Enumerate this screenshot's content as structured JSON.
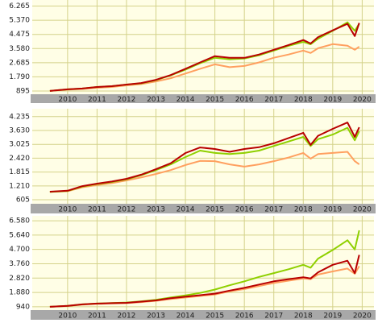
{
  "chart_data": [
    {
      "type": "line",
      "grid": true,
      "xlim": [
        2008.8,
        2020.4
      ],
      "xticks": [
        2010,
        2011,
        2012,
        2013,
        2014,
        2015,
        2016,
        2017,
        2018,
        2019,
        2020
      ],
      "ylim": [
        690,
        6650
      ],
      "yticks": [
        895,
        {
          "value": 1790,
          "label": "1.790"
        },
        {
          "value": 2685,
          "label": "2.685"
        },
        {
          "value": 3580,
          "label": "3.580"
        },
        {
          "value": 4475,
          "label": "4.475"
        },
        {
          "value": 5370,
          "label": "5.370"
        },
        {
          "value": 6265,
          "label": "6.265"
        }
      ],
      "x": [
        2009.4,
        2010,
        2010.5,
        2011,
        2011.5,
        2012,
        2012.5,
        2013,
        2013.5,
        2014,
        2014.5,
        2015,
        2015.5,
        2016,
        2016.5,
        2017,
        2017.5,
        2018,
        2018.25,
        2018.5,
        2019,
        2019.5,
        2019.75,
        2019.9
      ],
      "series": [
        {
          "color": "#ffa060",
          "values": [
            900,
            980,
            1020,
            1100,
            1150,
            1250,
            1330,
            1500,
            1700,
            2000,
            2300,
            2580,
            2400,
            2480,
            2700,
            3000,
            3200,
            3450,
            3300,
            3600,
            3860,
            3760,
            3500,
            3700
          ]
        },
        {
          "color": "#8fd000",
          "values": [
            900,
            1000,
            1050,
            1150,
            1200,
            1300,
            1380,
            1580,
            1880,
            2250,
            2650,
            3000,
            2900,
            2950,
            3150,
            3450,
            3750,
            4000,
            3850,
            4200,
            4700,
            5240,
            4700,
            5150
          ]
        },
        {
          "color": "#b80000",
          "values": [
            900,
            1000,
            1050,
            1150,
            1200,
            1300,
            1400,
            1600,
            1900,
            2300,
            2700,
            3100,
            3000,
            2990,
            3200,
            3500,
            3800,
            4120,
            3900,
            4300,
            4730,
            5140,
            4370,
            5200
          ]
        }
      ]
    },
    {
      "type": "line",
      "grid": true,
      "xlim": [
        2008.8,
        2020.4
      ],
      "xticks": [
        2010,
        2011,
        2012,
        2013,
        2014,
        2015,
        2016,
        2017,
        2018,
        2019,
        2020
      ],
      "ylim": [
        430,
        4580
      ],
      "yticks": [
        605,
        {
          "value": 1210,
          "label": "1.210"
        },
        {
          "value": 1815,
          "label": "1.815"
        },
        {
          "value": 2420,
          "label": "2.420"
        },
        {
          "value": 3025,
          "label": "3.025"
        },
        {
          "value": 3630,
          "label": "3.630"
        },
        {
          "value": 4235,
          "label": "4.235"
        }
      ],
      "x": [
        2009.4,
        2010,
        2010.5,
        2011,
        2011.5,
        2012,
        2012.5,
        2013,
        2013.5,
        2014,
        2014.5,
        2015,
        2015.5,
        2016,
        2016.5,
        2017,
        2017.5,
        2018,
        2018.25,
        2018.5,
        2019,
        2019.5,
        2019.75,
        2019.9
      ],
      "series": [
        {
          "color": "#ffa060",
          "values": [
            950,
            980,
            1150,
            1250,
            1330,
            1450,
            1580,
            1730,
            1900,
            2120,
            2300,
            2290,
            2150,
            2050,
            2150,
            2290,
            2450,
            2650,
            2400,
            2600,
            2650,
            2700,
            2290,
            2150
          ]
        },
        {
          "color": "#8fd000",
          "values": [
            950,
            990,
            1180,
            1290,
            1380,
            1500,
            1680,
            1900,
            2150,
            2470,
            2750,
            2650,
            2600,
            2650,
            2750,
            2950,
            3150,
            3350,
            2950,
            3250,
            3450,
            3750,
            3200,
            3600
          ]
        },
        {
          "color": "#b80000",
          "values": [
            957,
            1000,
            1200,
            1310,
            1400,
            1520,
            1700,
            1940,
            2200,
            2645,
            2890,
            2820,
            2700,
            2820,
            2900,
            3070,
            3300,
            3530,
            3000,
            3400,
            3700,
            3980,
            3350,
            3770
          ]
        }
      ]
    },
    {
      "type": "line",
      "grid": true,
      "xlim": [
        2008.8,
        2020.4
      ],
      "xticks": [
        2010,
        2011,
        2012,
        2013,
        2014,
        2015,
        2016,
        2017,
        2018,
        2019,
        2020
      ],
      "ylim": [
        725,
        6900
      ],
      "yticks": [
        940,
        {
          "value": 1880,
          "label": "1.880"
        },
        {
          "value": 2820,
          "label": "2.820"
        },
        {
          "value": 3760,
          "label": "3.760"
        },
        {
          "value": 4700,
          "label": "4.700"
        },
        {
          "value": 5640,
          "label": "5.640"
        },
        {
          "value": 6580,
          "label": "6.580"
        }
      ],
      "x": [
        2009.4,
        2010,
        2010.5,
        2011,
        2011.5,
        2012,
        2012.5,
        2013,
        2013.5,
        2014,
        2014.5,
        2015,
        2015.5,
        2016,
        2016.5,
        2017,
        2017.5,
        2018,
        2018.25,
        2018.5,
        2019,
        2019.5,
        2019.75,
        2019.9
      ],
      "series": [
        {
          "color": "#ffa060",
          "values": [
            940,
            990,
            1080,
            1130,
            1160,
            1180,
            1250,
            1330,
            1450,
            1550,
            1650,
            1750,
            1950,
            2100,
            2300,
            2500,
            2650,
            2800,
            2750,
            3050,
            3260,
            3450,
            3100,
            3600
          ]
        },
        {
          "color": "#8fd000",
          "values": [
            940,
            1000,
            1100,
            1150,
            1190,
            1220,
            1300,
            1400,
            1550,
            1690,
            1850,
            2070,
            2350,
            2610,
            2900,
            3150,
            3400,
            3690,
            3500,
            4100,
            4660,
            5300,
            4700,
            5950
          ]
        },
        {
          "color": "#b80000",
          "values": [
            940,
            1000,
            1100,
            1150,
            1180,
            1200,
            1280,
            1360,
            1500,
            1600,
            1700,
            1800,
            2000,
            2180,
            2400,
            2610,
            2750,
            2880,
            2800,
            3200,
            3690,
            3960,
            3150,
            4340
          ]
        }
      ]
    }
  ]
}
